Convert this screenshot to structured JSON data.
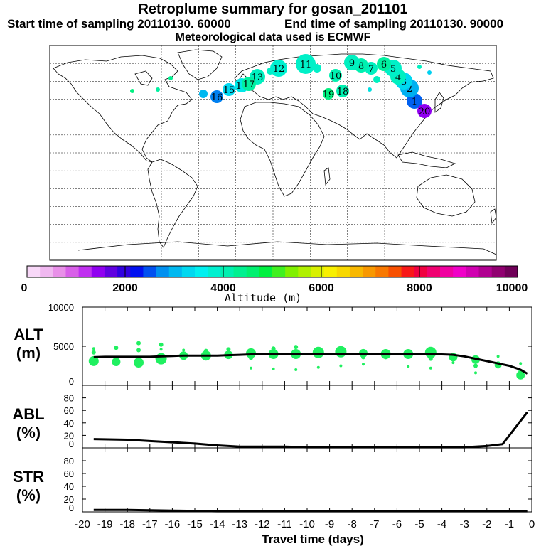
{
  "header": {
    "title": "Retroplume summary for gosan_201101",
    "start": "Start time of sampling 20110130. 60000",
    "end": "End time of sampling 20110130. 90000",
    "met": "Meteorological data used is ECMWF"
  },
  "colorbar": {
    "ticks": [
      "0",
      "2000",
      "4000",
      "6000",
      "8000",
      "10000"
    ],
    "label": "Altitude (m)",
    "colors": [
      "#f8d8f8",
      "#f0b8f0",
      "#e890e8",
      "#d860e8",
      "#c030f0",
      "#9000f0",
      "#6000e0",
      "#3000e0",
      "#0010f0",
      "#0050f0",
      "#0090f0",
      "#00b8f0",
      "#00d8f0",
      "#00f0f0",
      "#00f0d0",
      "#00f0b0",
      "#00f090",
      "#00f070",
      "#00f040",
      "#40f020",
      "#80f000",
      "#b0f000",
      "#d8f000",
      "#f8f000",
      "#f8d800",
      "#f8b800",
      "#f89800",
      "#f87800",
      "#f85000",
      "#f81818",
      "#f00040",
      "#f00070",
      "#f000a0",
      "#f000c8",
      "#d000b0",
      "#b00090",
      "#900070",
      "#700058"
    ]
  },
  "map": {
    "markers": [
      {
        "label": "1",
        "color": "#0060f0"
      },
      {
        "label": "2",
        "color": "#00b0f0"
      },
      {
        "label": "3",
        "color": "#00d8f0"
      },
      {
        "label": "4",
        "color": "#00f0c0"
      },
      {
        "label": "5",
        "color": "#00f0c8"
      },
      {
        "label": "6",
        "color": "#00f0a0"
      },
      {
        "label": "7",
        "color": "#00f0c0"
      },
      {
        "label": "8",
        "color": "#00f0b0"
      },
      {
        "label": "9",
        "color": "#00f0c0"
      },
      {
        "label": "10",
        "color": "#00f0b0"
      },
      {
        "label": "11",
        "color": "#00f0c8"
      },
      {
        "label": "12",
        "color": "#00f0d0"
      },
      {
        "label": "13",
        "color": "#00f0c0"
      },
      {
        "label": "14",
        "color": "#00e8e8"
      },
      {
        "label": "15",
        "color": "#00d8f0"
      },
      {
        "label": "16",
        "color": "#0080f0"
      },
      {
        "label": "17",
        "color": "#00f0a0"
      },
      {
        "label": "18",
        "color": "#00f0b0"
      },
      {
        "label": "19",
        "color": "#00f080"
      },
      {
        "label": "20",
        "color": "#9000f0"
      }
    ]
  },
  "chart_data": [
    {
      "type": "scatter",
      "name": "ALT",
      "ylabel_line1": "ALT",
      "ylabel_line2": "(m)",
      "ylim": [
        0,
        10000
      ],
      "yticks": [
        "10000",
        "5000",
        "0"
      ],
      "median_line": {
        "x": [
          -19.5,
          -19,
          -18.5,
          -18,
          -17.5,
          -17,
          -16.5,
          -16,
          -15.5,
          -15,
          -14.5,
          -14,
          -13.5,
          -13,
          -12.5,
          -12,
          -11.5,
          -11,
          -10.5,
          -10,
          -9.5,
          -9,
          -8.5,
          -8,
          -7.5,
          -7,
          -6.5,
          -6,
          -5.5,
          -5,
          -4.5,
          -4,
          -3.5,
          -3,
          -2.5,
          -2,
          -1.5,
          -1,
          -0.5,
          -0.2
        ],
        "y": [
          3600,
          3650,
          3650,
          3650,
          3650,
          3650,
          3700,
          3750,
          3800,
          3800,
          3800,
          3800,
          3850,
          3900,
          3950,
          3950,
          3950,
          3950,
          3950,
          3950,
          3950,
          3950,
          3950,
          3950,
          3950,
          3950,
          3950,
          3950,
          3950,
          3950,
          3950,
          3950,
          3900,
          3700,
          3400,
          3100,
          2800,
          2500,
          2000,
          1500
        ]
      },
      "points_x": [
        -19.5,
        -19.5,
        -19.5,
        -18.5,
        -18.5,
        -17.5,
        -17.5,
        -17.5,
        -16.5,
        -16.5,
        -16.5,
        -15.5,
        -15.5,
        -14.5,
        -14.5,
        -13.5,
        -13.5,
        -12.5,
        -12.5,
        -12.5,
        -11.5,
        -11.5,
        -11.5,
        -10.5,
        -10.5,
        -10.5,
        -9.5,
        -9.5,
        -9.5,
        -8.5,
        -8.5,
        -8.5,
        -7.5,
        -7.5,
        -7.5,
        -6.5,
        -6.5,
        -5.5,
        -5.5,
        -5.5,
        -4.5,
        -4.5,
        -4.5,
        -3.5,
        -3.5,
        -2.5,
        -2.5,
        -2.5,
        -1.5,
        -1.5,
        -0.5,
        -0.5,
        -0.5
      ],
      "points_y": [
        3100,
        4200,
        4700,
        3000,
        4800,
        2900,
        4500,
        5400,
        3400,
        4600,
        5200,
        3800,
        4500,
        3800,
        4400,
        3900,
        4600,
        4100,
        3500,
        2200,
        4000,
        4700,
        2100,
        4000,
        4900,
        2000,
        4200,
        4500,
        2300,
        4300,
        4700,
        2500,
        4100,
        3600,
        2700,
        4000,
        3600,
        4000,
        3700,
        2400,
        4200,
        3400,
        2200,
        3600,
        2900,
        3300,
        2500,
        1600,
        2600,
        3700,
        1300,
        1800,
        2800
      ],
      "point_r": [
        7,
        3,
        2,
        6,
        3,
        7,
        3,
        3,
        8,
        2,
        3,
        6,
        2,
        7,
        3,
        6,
        3,
        7,
        3,
        2,
        7,
        3,
        2,
        7,
        3,
        2,
        8,
        3,
        2,
        8,
        3,
        2,
        6,
        3,
        2,
        7,
        3,
        7,
        3,
        2,
        8,
        3,
        2,
        6,
        2,
        6,
        3,
        2,
        5,
        2,
        6,
        3,
        2
      ]
    },
    {
      "type": "line",
      "name": "ABL",
      "ylabel_line1": "ABL",
      "ylabel_line2": "(%)",
      "ylim": [
        0,
        100
      ],
      "yticks": [
        "80",
        "60",
        "40",
        "20",
        "0"
      ],
      "x": [
        -19.5,
        -18,
        -17,
        -16,
        -15,
        -14,
        -13,
        -12,
        -11,
        -10,
        -9,
        -8,
        -7,
        -6,
        -5,
        -4,
        -3,
        -2,
        -1.3,
        -0.2
      ],
      "y": [
        14,
        13,
        11,
        9,
        7,
        4,
        2,
        2,
        2,
        1,
        1,
        1,
        1,
        1,
        1,
        1,
        1,
        3,
        6,
        57
      ]
    },
    {
      "type": "line",
      "name": "STR",
      "ylabel_line1": "STR",
      "ylabel_line2": "(%)",
      "ylim": [
        0,
        100
      ],
      "yticks": [
        "80",
        "60",
        "40",
        "20",
        "0"
      ],
      "x": [
        -19.5,
        -18,
        -16,
        -14,
        -12,
        -10,
        -8,
        -6,
        -4,
        -2,
        -1,
        -0.2
      ],
      "y": [
        3,
        3,
        2,
        1,
        1,
        1,
        1,
        1,
        1,
        1,
        1,
        1
      ],
      "xlabel": "Travel time (days)",
      "xticks": [
        "-20",
        "-19",
        "-18",
        "-17",
        "-16",
        "-15",
        "-14",
        "-13",
        "-12",
        "-11",
        "-10",
        "-9",
        "-8",
        "-7",
        "-6",
        "-5",
        "-4",
        "-3",
        "-2",
        "-1",
        "0"
      ]
    }
  ]
}
